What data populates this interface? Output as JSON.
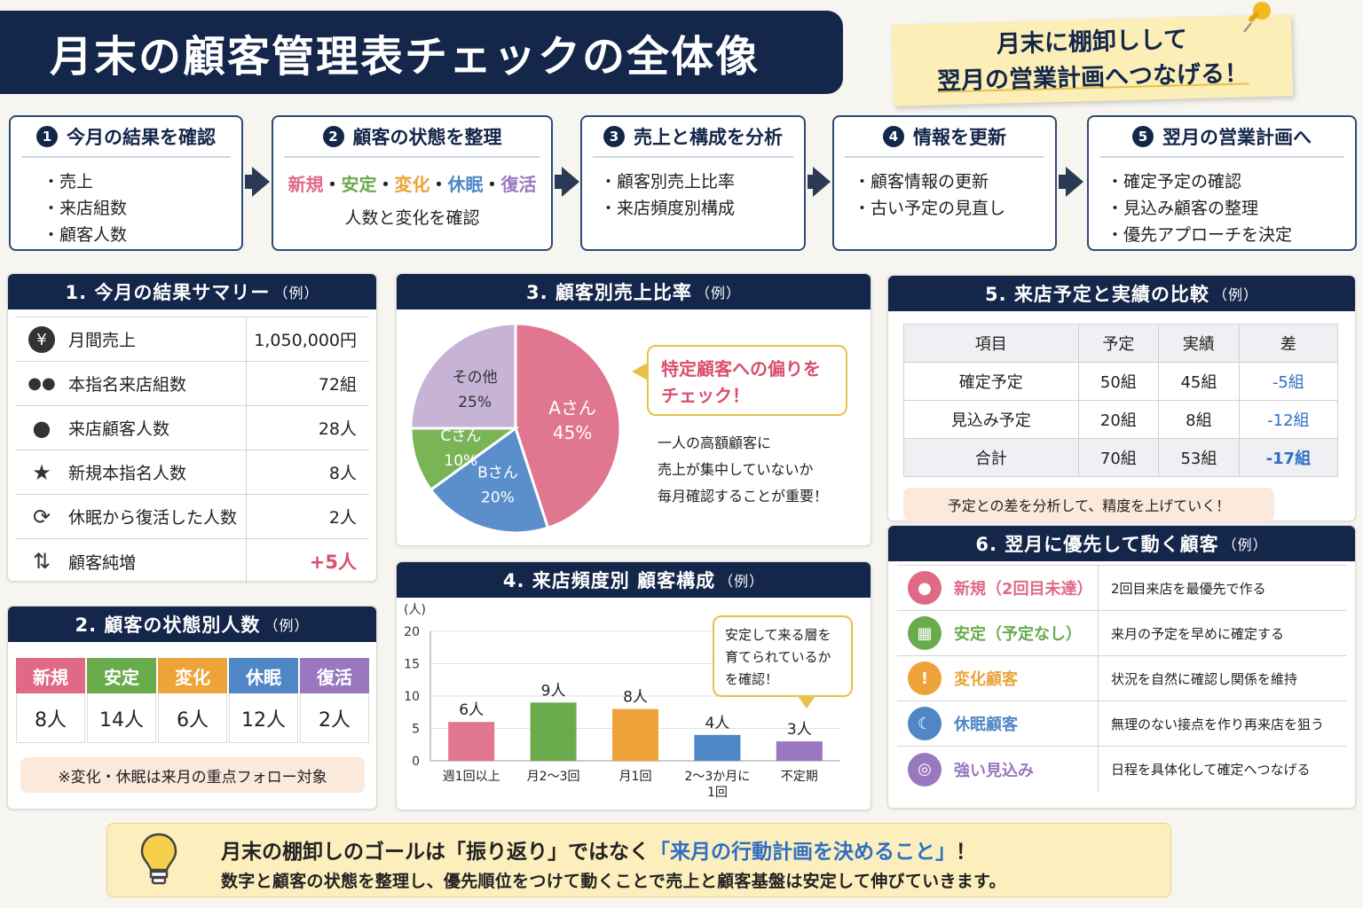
{
  "title": "月末の顧客管理表チェックの全体像",
  "note": {
    "line1": "月末に棚卸しして",
    "line2": "翌月の営業計画へつなげる！"
  },
  "steps": [
    {
      "num": "1",
      "title": "今月の結果を確認",
      "items": [
        "・売上",
        "・来店組数",
        "・顧客人数"
      ]
    },
    {
      "num": "2",
      "title": "顧客の状態を整理",
      "tags": [
        "新規",
        "安定",
        "変化",
        "休眠",
        "復活"
      ],
      "sep": "・",
      "sub": "人数と変化を確認"
    },
    {
      "num": "3",
      "title": "売上と構成を分析",
      "items": [
        "・顧客別売上比率",
        "・来店頻度別構成"
      ]
    },
    {
      "num": "4",
      "title": "情報を更新",
      "items": [
        "・顧客情報の更新",
        "・古い予定の見直し"
      ]
    },
    {
      "num": "5",
      "title": "翌月の営業計画へ",
      "items": [
        "・確定予定の確認",
        "・見込み顧客の整理",
        "・優先アプローチを決定"
      ]
    }
  ],
  "summary": {
    "title": "1. 今月の結果サマリー",
    "ex": "（例）",
    "rows": [
      {
        "icon": "¥",
        "label": "月間売上",
        "value": "1,050,000円"
      },
      {
        "icon": "●●",
        "label": "本指名来店組数",
        "value": "72組"
      },
      {
        "icon": "●",
        "label": "来店顧客人数",
        "value": "28人"
      },
      {
        "icon": "★",
        "label": "新規本指名人数",
        "value": "8人"
      },
      {
        "icon": "⟳",
        "label": "休眠から復活した人数",
        "value": "2人"
      },
      {
        "icon": "⇅",
        "label": "顧客純増",
        "value": "+5人"
      }
    ]
  },
  "status": {
    "title": "2. 顧客の状態別人数",
    "ex": "（例）",
    "cells": [
      {
        "label": "新規",
        "value": "8人",
        "color": "#e06a86"
      },
      {
        "label": "安定",
        "value": "14人",
        "color": "#6aab4e"
      },
      {
        "label": "変化",
        "value": "6人",
        "color": "#eda23a"
      },
      {
        "label": "休眠",
        "value": "12人",
        "color": "#4f86c6"
      },
      {
        "label": "復活",
        "value": "2人",
        "color": "#9a78c0"
      }
    ],
    "note": "※変化・休眠は来月の重点フォロー対象"
  },
  "pie": {
    "title": "3. 顧客別売上比率",
    "ex": "（例）",
    "callout": [
      "特定顧客への偏りを",
      "チェック！"
    ],
    "desc": [
      "一人の高額顧客に",
      "売上が集中していないか",
      "毎月確認することが重要！"
    ]
  },
  "bars": {
    "title": "4. 来店頻度別 顧客構成",
    "ex": "（例）",
    "unit": "(人)",
    "callout": [
      "安定して来る層を",
      "育てられているか",
      "を確認！"
    ]
  },
  "compare": {
    "title": "5. 来店予定と実績の比較",
    "ex": "（例）",
    "header": [
      "項目",
      "予定",
      "実績",
      "差"
    ],
    "rows": [
      [
        "確定予定",
        "50組",
        "45組",
        "-5組"
      ],
      [
        "見込み予定",
        "20組",
        "8組",
        "-12組"
      ],
      [
        "合計",
        "70組",
        "53組",
        "-17組"
      ]
    ],
    "note": "予定との差を分析して、精度を上げていく！"
  },
  "priority": {
    "title": "6. 翌月に優先して動く顧客",
    "ex": "（例）",
    "rows": [
      {
        "icon": "●",
        "label": "新規（2回目未達）",
        "action": "2回目来店を最優先で作る",
        "color": "#e06a86"
      },
      {
        "icon": "▦",
        "label": "安定（予定なし）",
        "action": "来月の予定を早めに確定する",
        "color": "#6aab4e"
      },
      {
        "icon": "!",
        "label": "変化顧客",
        "action": "状況を自然に確認し関係を維持",
        "color": "#eda23a"
      },
      {
        "icon": "☾",
        "label": "休眠顧客",
        "action": "無理のない接点を作り再来店を狙う",
        "color": "#4f86c6"
      },
      {
        "icon": "◎",
        "label": "強い見込み",
        "action": "日程を具体化して確定へつなげる",
        "color": "#9a78c0"
      }
    ]
  },
  "bottom": {
    "l1a": "月末の棚卸しのゴールは「振り返り」ではなく",
    "l1b": "「来月の行動計画を決めること」",
    "l1c": "！",
    "l2": "数字と顧客の状態を整理し、優先順位をつけて動くことで売上と顧客基盤は安定して伸びていきます。"
  },
  "chart_data": [
    {
      "type": "pie",
      "title": "3. 顧客別売上比率（例）",
      "categories": [
        "Aさん",
        "Bさん",
        "Cさん",
        "その他"
      ],
      "values": [
        45,
        20,
        10,
        25
      ],
      "colors": [
        "#e17690",
        "#5b8fcb",
        "#79b557",
        "#c7b3d6"
      ]
    },
    {
      "type": "bar",
      "title": "4. 来店頻度別 顧客構成（例）",
      "ylabel": "(人)",
      "categories": [
        "週1回以上",
        "月2〜3回",
        "月1回",
        "2〜3か月に1回",
        "不定期"
      ],
      "values": [
        6,
        9,
        8,
        4,
        3
      ],
      "value_labels": [
        "6人",
        "9人",
        "8人",
        "4人",
        "3人"
      ],
      "colors": [
        "#e17690",
        "#6aab4e",
        "#eda23a",
        "#4f86c6",
        "#9a78c0"
      ],
      "ylim": [
        0,
        20
      ],
      "yticks": [
        0,
        5,
        10,
        15,
        20
      ]
    }
  ]
}
